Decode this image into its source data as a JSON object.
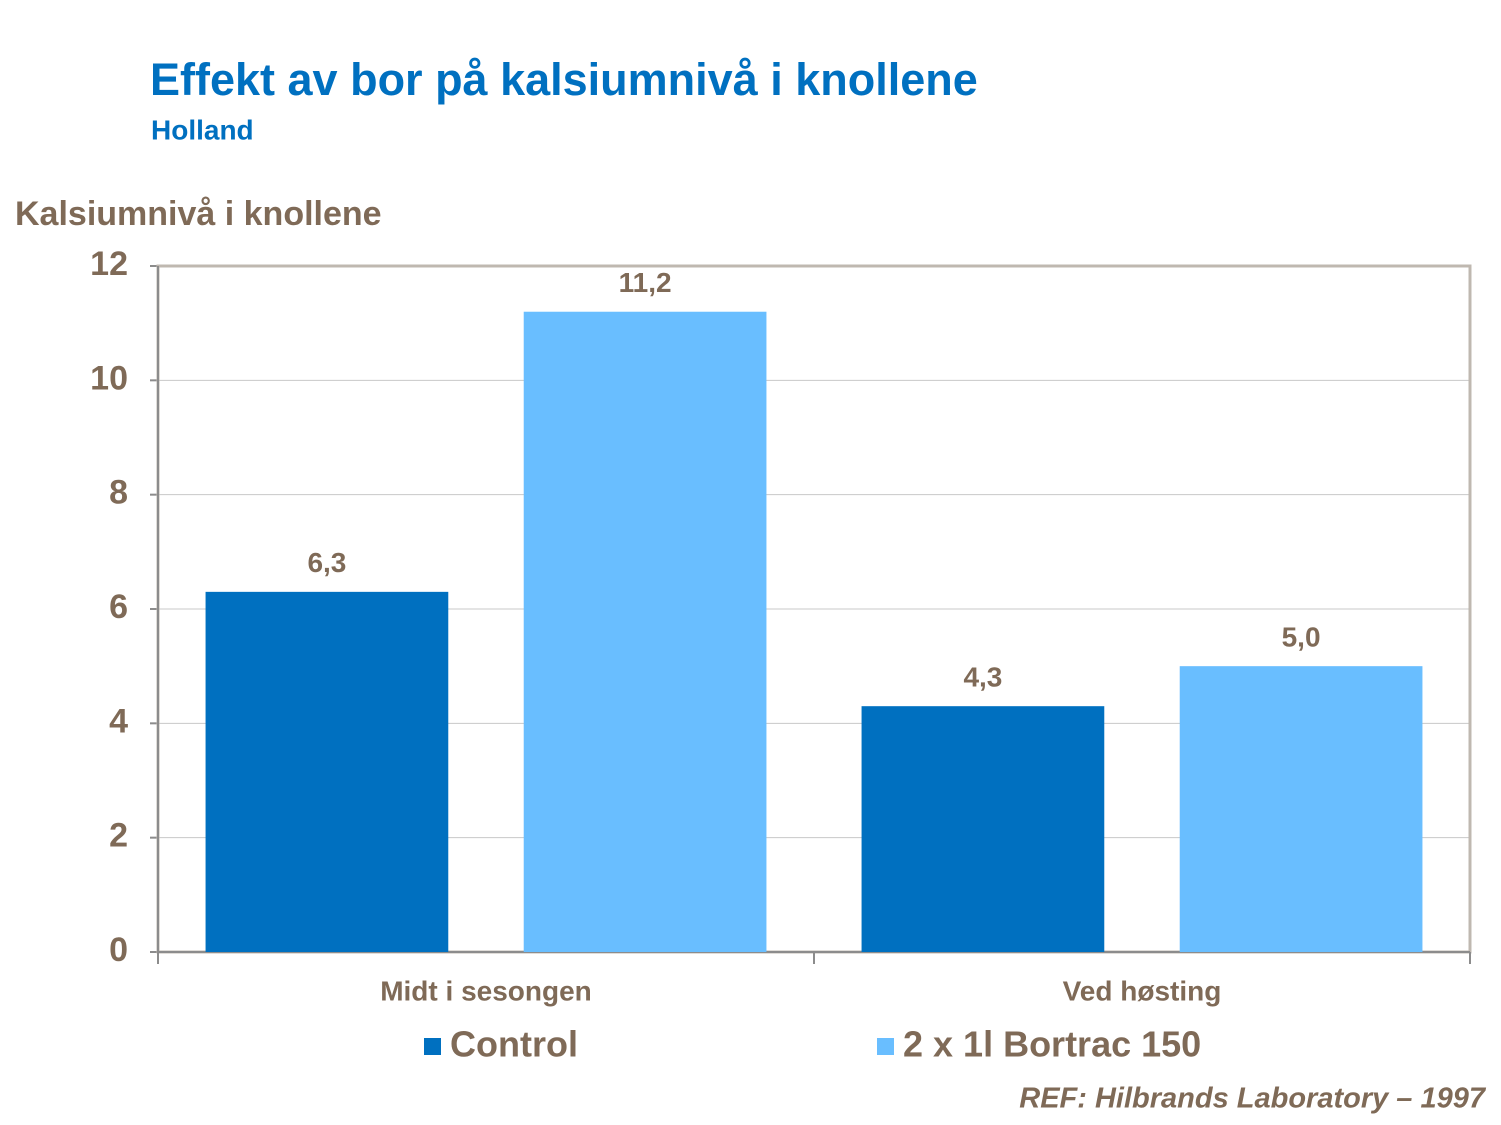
{
  "chart_data": {
    "type": "bar",
    "title": "Effekt av bor på kalsiumnivå i knollene",
    "subtitle": "Holland",
    "y_label": "Kalsiumnivå i knollene",
    "source": "REF: Hilbrands Laboratory – 1997",
    "categories": [
      "Midt i sesongen",
      "Ved høsting"
    ],
    "series": [
      {
        "name": "Control",
        "color": "#0070c0",
        "values": [
          6.3,
          4.3
        ],
        "value_labels": [
          "6,3",
          "4,3"
        ]
      },
      {
        "name": "2 x 1l Bortrac 150",
        "color": "#69beff",
        "values": [
          11.2,
          5.0
        ],
        "value_labels": [
          "11,2",
          "5,0"
        ]
      }
    ],
    "ylim": [
      0,
      12
    ],
    "yticks": [
      0,
      2,
      4,
      6,
      8,
      10,
      12
    ],
    "grid": true,
    "legend": "bottom"
  }
}
